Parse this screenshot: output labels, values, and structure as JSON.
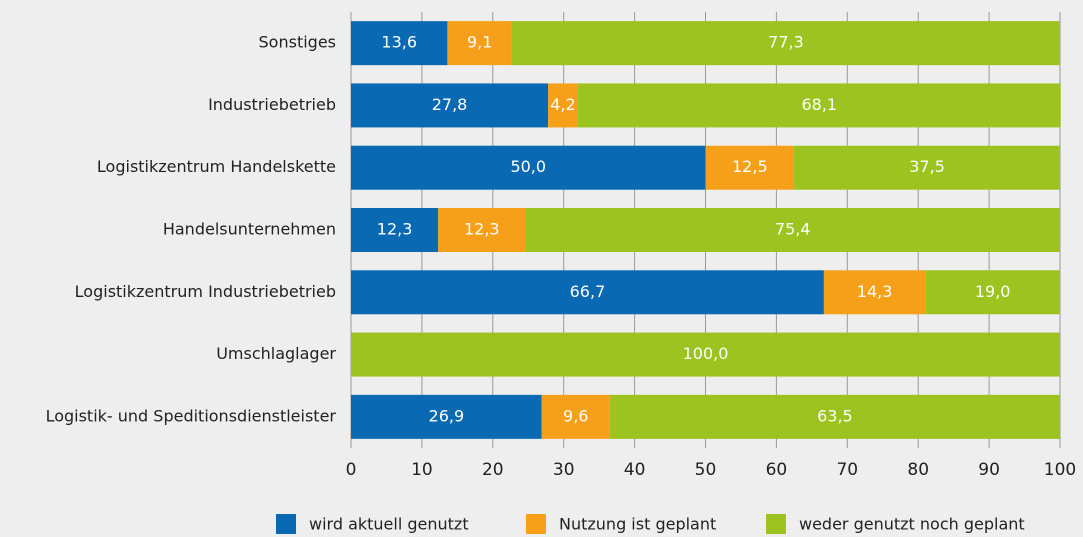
{
  "chart_data": {
    "type": "stacked-bar-horizontal",
    "categories": [
      "Sonstiges",
      "Industriebetrieb",
      "Logistikzentrum Handelskette",
      "Handelsunternehmen",
      "Logistikzentrum Industriebetrieb",
      "Umschlaglager",
      "Logistik- und Speditionsdienstleister"
    ],
    "series": [
      {
        "name": "wird aktuell genutzt",
        "color": "#0a69b3",
        "values": [
          13.6,
          27.8,
          50.0,
          12.3,
          66.7,
          0,
          26.9
        ],
        "value_labels": [
          "13,6",
          "27,8",
          "50,0",
          "12,3",
          "66,7",
          null,
          "26,9"
        ]
      },
      {
        "name": "Nutzung ist geplant",
        "color": "#f6a01a",
        "values": [
          9.1,
          4.2,
          12.5,
          12.3,
          14.3,
          0,
          9.6
        ],
        "value_labels": [
          "9,1",
          "4,2",
          "12,5",
          "12,3",
          "14,3",
          null,
          "9,6"
        ]
      },
      {
        "name": "weder genutzt noch geplant",
        "color": "#9cc31f",
        "values": [
          77.3,
          68.1,
          37.5,
          75.4,
          19.0,
          100.0,
          63.5
        ],
        "value_labels": [
          "77,3",
          "68,1",
          "37,5",
          "75,4",
          "19,0",
          "100,0",
          "63,5"
        ]
      }
    ],
    "xlim": [
      0,
      100
    ],
    "xticks": [
      0,
      10,
      20,
      30,
      40,
      50,
      60,
      70,
      80,
      90,
      100
    ],
    "grid": true,
    "legend": "bottom"
  }
}
